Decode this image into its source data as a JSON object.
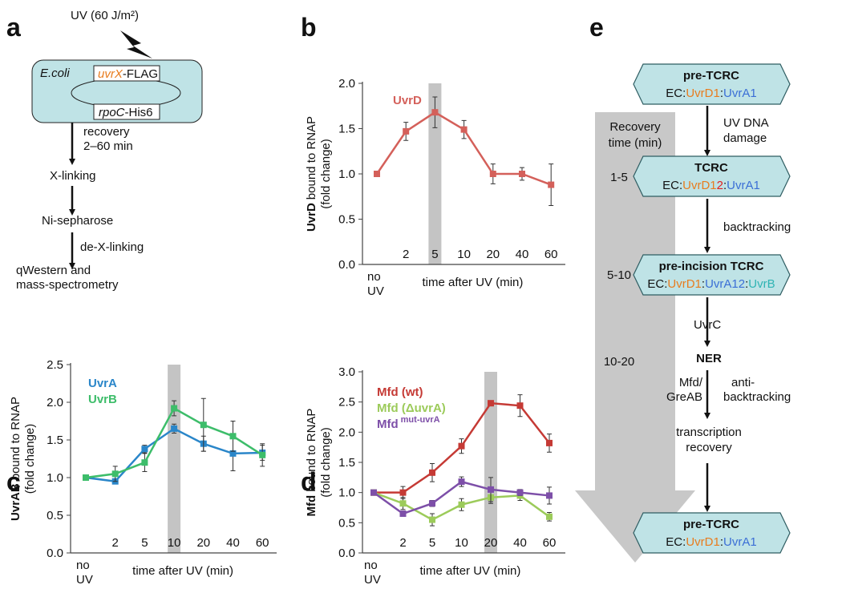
{
  "panel_a": {
    "label": "a",
    "uv": "UV (60 J/m²)",
    "organism": "E.coli",
    "gene1": "uvrX",
    "gene1_tag": "-FLAG",
    "gene2": "rpoC",
    "gene2_tag": "-His6",
    "steps": [
      [
        "recovery",
        "2–60 min"
      ],
      [
        "X-linking"
      ],
      [
        "Ni-sepharose"
      ],
      [
        "de-X-linking"
      ],
      [
        "qWestern and",
        "mass-spectrometry"
      ]
    ]
  },
  "panel_e": {
    "label": "e",
    "states": [
      {
        "title": "pre-TCRC",
        "complex": [
          "EC:",
          "UvrD1",
          ":",
          "UvrA1"
        ]
      },
      {
        "title": "TCRC",
        "complex": [
          "EC:",
          "UvrD1",
          "2",
          ":",
          "UvrA1"
        ]
      },
      {
        "title": "pre-incision TCRC",
        "complex": [
          "EC:",
          "UvrD1",
          ":",
          "UvrA12",
          ":",
          "UvrB"
        ]
      },
      {
        "title": "pre-TCRC",
        "complex": [
          "EC:",
          "UvrD1",
          ":",
          "UvrA1"
        ]
      }
    ],
    "steps": [
      [
        "UV DNA",
        "damage"
      ],
      [
        "backtracking"
      ],
      [
        "UvrC"
      ],
      [
        "NER"
      ],
      [
        "Mfd/",
        "GreAB"
      ],
      [
        "anti-",
        "backtracking"
      ],
      [
        "transcription",
        "recovery"
      ]
    ],
    "timeline": {
      "title": [
        "Recovery",
        "time (min)"
      ],
      "times": [
        "1-5",
        "5-10",
        "10-20"
      ]
    }
  },
  "chart_data": [
    {
      "type": "line",
      "panel": "b",
      "ylabel_bold": "UvrD",
      "ylabel": "bound to RNAP",
      "ylabel2": "(fold change)",
      "xlabel": "time after UV (min)",
      "categories": [
        "no UV",
        "2",
        "5",
        "10",
        "20",
        "40",
        "60"
      ],
      "highlight": "5",
      "ylim": [
        0,
        2
      ],
      "yticks": [
        {
          "value": 0,
          "label": "0.0"
        },
        {
          "value": 0.5,
          "label": "0.5"
        },
        {
          "value": 1,
          "label": "1.0"
        },
        {
          "value": 1.5,
          "label": "1.5"
        },
        {
          "value": 2,
          "label": "2.0"
        }
      ],
      "series": [
        {
          "name": "UvrD",
          "color": "#d4605a",
          "values": [
            1.0,
            1.47,
            1.68,
            1.49,
            1.0,
            1.0,
            0.88
          ],
          "errors": [
            0.03,
            0.1,
            0.17,
            0.1,
            0.11,
            0.07,
            0.23
          ]
        }
      ]
    },
    {
      "type": "line",
      "panel": "c",
      "ylabel_bold": "UvrAB",
      "ylabel": "bound to RNAP",
      "ylabel2": "(fold change)",
      "xlabel": "time after UV (min)",
      "categories": [
        "no UV",
        "2",
        "5",
        "10",
        "20",
        "40",
        "60"
      ],
      "highlight": "10",
      "ylim": [
        0,
        2.5
      ],
      "yticks": [
        {
          "value": 0,
          "label": "0.0"
        },
        {
          "value": 0.5,
          "label": "0.5"
        },
        {
          "value": 1,
          "label": "1.0"
        },
        {
          "value": 1.5,
          "label": "1.5"
        },
        {
          "value": 2,
          "label": "2.0"
        },
        2.5
      ],
      "series": [
        {
          "name": "UvrA",
          "color": "#2a86c9",
          "values": [
            1.0,
            0.95,
            1.38,
            1.65,
            1.45,
            1.32,
            1.33
          ],
          "errors": [
            0.03,
            0.03,
            0.05,
            0.06,
            0.1,
            0.23,
            0.1
          ]
        },
        {
          "name": "UvrB",
          "color": "#3dbd6a",
          "values": [
            1.0,
            1.05,
            1.2,
            1.92,
            1.7,
            1.55,
            1.3
          ],
          "errors": [
            0.03,
            0.1,
            0.12,
            0.1,
            0.35,
            0.2,
            0.15
          ]
        }
      ]
    },
    {
      "type": "line",
      "panel": "d",
      "ylabel_bold": "Mfd",
      "ylabel": "bound to RNAP",
      "ylabel2": "(fold change)",
      "xlabel": "time after UV (min)",
      "categories": [
        "no UV",
        "2",
        "5",
        "10",
        "20",
        "40",
        "60"
      ],
      "highlight": "20",
      "ylim": [
        0,
        3
      ],
      "yticks": [
        {
          "value": 0,
          "label": "0.0"
        },
        {
          "value": 0.5,
          "label": "0.5"
        },
        {
          "value": 1,
          "label": "1.0"
        },
        {
          "value": 1.5,
          "label": "1.5"
        },
        {
          "value": 2,
          "label": "2.0"
        },
        {
          "value": 2.5,
          "label": "2.5"
        },
        {
          "value": 3,
          "label": "3.0"
        }
      ],
      "series": [
        {
          "name": "Mfd (wt)",
          "color": "#c53a35",
          "values": [
            1.0,
            1.0,
            1.33,
            1.77,
            2.48,
            2.44,
            1.82
          ],
          "errors": [
            0.03,
            0.1,
            0.15,
            0.12,
            0.03,
            0.18,
            0.15
          ]
        },
        {
          "name": "Mfd (ΔuvrA)",
          "color": "#9ccb5a",
          "values": [
            1.0,
            0.82,
            0.55,
            0.8,
            0.92,
            0.95,
            0.6
          ],
          "errors": [
            0.03,
            0.1,
            0.1,
            0.1,
            0.1,
            0.08,
            0.07
          ]
        },
        {
          "name": "Mfd",
          "superscript": "mut-uvrA",
          "color": "#7d4fa8",
          "values": [
            1.0,
            0.65,
            0.82,
            1.18,
            1.05,
            1.0,
            0.95
          ],
          "errors": [
            0.03,
            0.03,
            0.05,
            0.08,
            0.2,
            0.05,
            0.14
          ]
        }
      ]
    }
  ]
}
